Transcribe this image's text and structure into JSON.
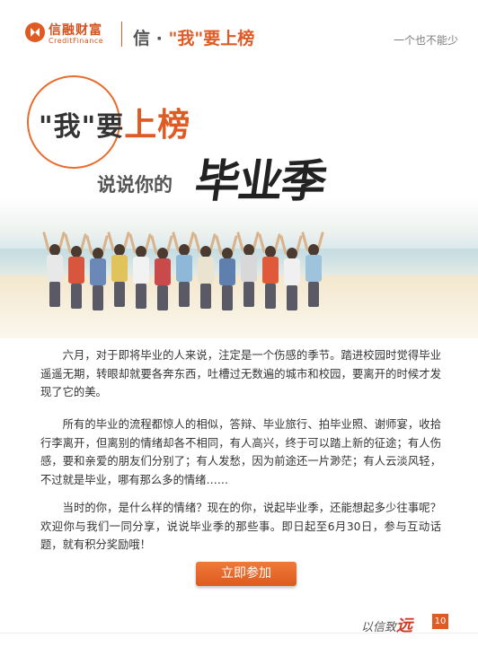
{
  "header": {
    "brand_cn": "信融财富",
    "brand_en": "CreditFinance",
    "section_prefix": "信 · ",
    "section_highlight": "\"我\"要上榜",
    "slogan": "一个也不能少"
  },
  "hero": {
    "title_main": "\"我\"要",
    "title_accent": "上榜",
    "subtitle": "说说你的",
    "calligraphy": "毕业季"
  },
  "article": {
    "para1": "六月，对于即将毕业的人来说，注定是一个伤感的季节。踏进校园时觉得毕业遥遥无期，转眼却就要各奔东西，吐槽过无数遍的城市和校园，要离开的时候才发现了它的美。",
    "para2": "所有的毕业的流程都惊人的相似，答辩、毕业旅行、拍毕业照、谢师宴，收拾行李离开，但离别的情绪却各不相同，有人高兴，终于可以踏上新的征途；有人伤感，要和亲爱的朋友们分别了；有人发愁，因为前途还一片渺茫；有人云淡风轻，不过就是毕业，哪有那么多的情绪……",
    "para3": "当时的你，是什么样的情绪？现在的你，说起毕业季，还能想起多少往事呢？欢迎你与我们一同分享，说说毕业季的那些事。即日起至6月30日，参与互动话题，就有积分奖励哦！"
  },
  "cta_label": "立即参加",
  "footer": {
    "script_prefix": "以信致",
    "script_accent": "远",
    "page_number": "10"
  },
  "colors": {
    "brand": "#e05a23",
    "text": "#333333"
  }
}
